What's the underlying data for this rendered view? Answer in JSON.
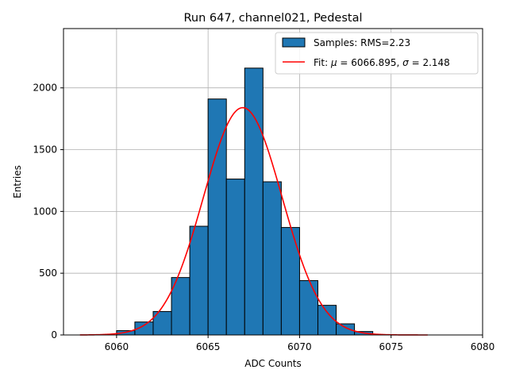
{
  "chart_data": {
    "type": "bar",
    "title": "Run 647, channel021, Pedestal",
    "xlabel": "ADC Counts",
    "ylabel": "Entries",
    "xlim": [
      6057.1,
      6080
    ],
    "ylim": [
      0,
      2480
    ],
    "xticks": [
      6060,
      6065,
      6070,
      6075,
      6080
    ],
    "yticks": [
      0,
      500,
      1000,
      1500,
      2000
    ],
    "grid": true,
    "legend_position": "top-right",
    "histogram": {
      "name": "Samples: RMS=2.23",
      "bin_edges": [
        6060,
        6061,
        6062,
        6063,
        6064,
        6065,
        6066,
        6067,
        6068,
        6069,
        6070,
        6071,
        6072,
        6073,
        6074
      ],
      "counts": [
        35,
        105,
        190,
        465,
        880,
        1910,
        1262,
        2160,
        1240,
        870,
        440,
        240,
        90,
        28
      ],
      "color": "#1f77b4",
      "edgecolor": "#000000"
    },
    "fit": {
      "name": "Fit: μ = 6066.895, σ = 2.148",
      "label_parts": [
        "Fit: ",
        "μ",
        " = 6066.895, ",
        "σ",
        " = 2.148"
      ],
      "mu": 6066.895,
      "sigma": 2.148,
      "amplitude": 1840,
      "x_range": [
        6058,
        6077
      ],
      "color": "#ff0000"
    }
  }
}
